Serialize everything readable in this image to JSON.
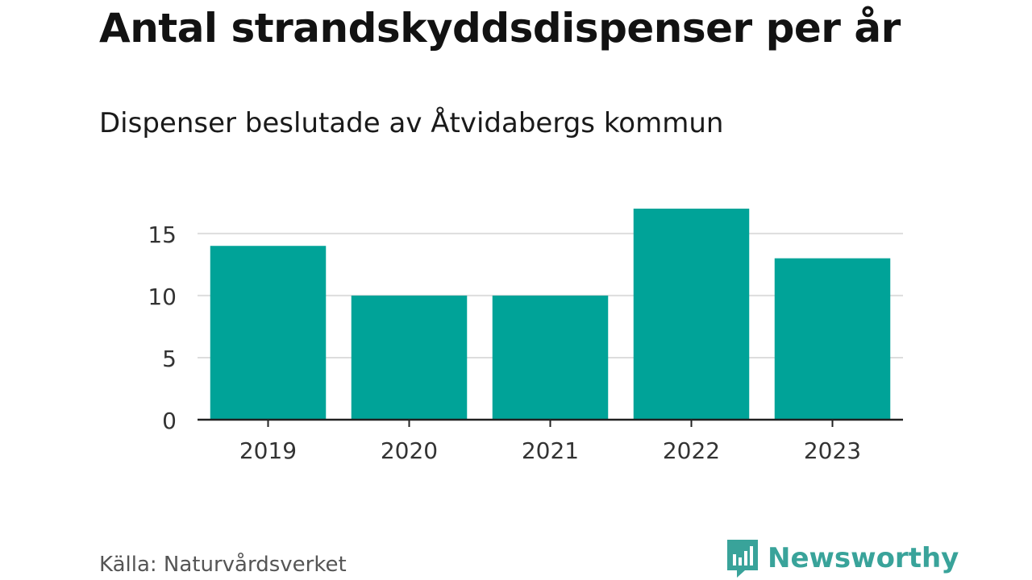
{
  "title": "Antal strandskyddsdispenser per år",
  "subtitle": "Dispenser beslutade av Åtvidabergs kommun",
  "source": "Källa: Naturvårdsverket",
  "brand": {
    "name": "Newsworthy",
    "icon": "bar-chart-logo-icon"
  },
  "colors": {
    "bar": "#00A398",
    "brand": "#39A39A",
    "grid": "#dddddd",
    "axis": "#222222"
  },
  "chart_data": {
    "type": "bar",
    "categories": [
      "2019",
      "2020",
      "2021",
      "2022",
      "2023"
    ],
    "values": [
      14,
      10,
      10,
      17,
      13
    ],
    "ylim": [
      0,
      17
    ],
    "yticks": [
      0,
      5,
      10,
      15
    ],
    "title": "Antal strandskyddsdispenser per år",
    "xlabel": "",
    "ylabel": "",
    "grid": true
  }
}
